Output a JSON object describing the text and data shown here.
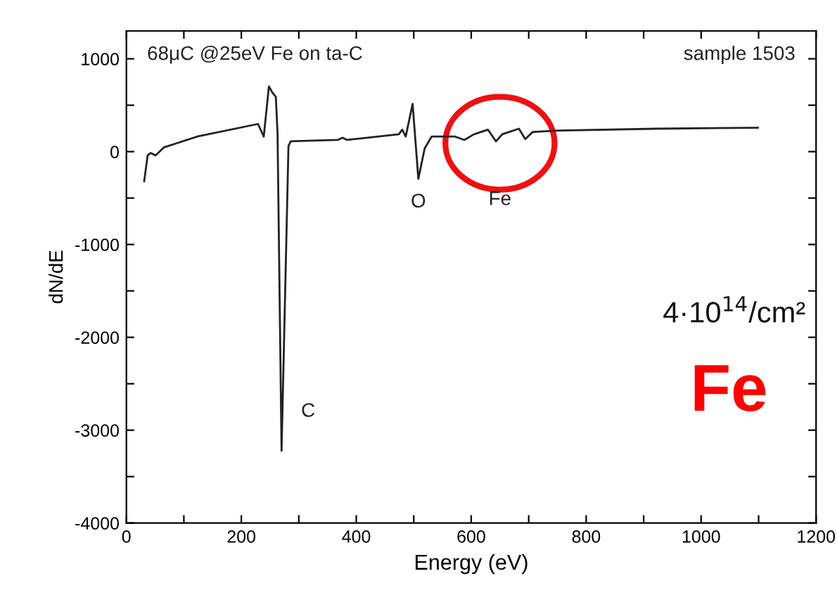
{
  "chart_data": {
    "type": "line",
    "xlabel": "Energy (eV)",
    "ylabel": "dN/dE",
    "x": [
      31,
      37,
      42,
      51,
      65,
      123,
      229,
      239,
      248,
      254,
      260,
      263,
      270,
      282,
      286,
      368,
      376,
      384,
      474,
      480,
      486,
      498,
      508,
      519,
      531,
      572,
      588,
      605,
      629,
      643,
      654,
      683,
      694,
      707,
      752,
      923,
      1099
    ],
    "series": [
      {
        "color": "#222222",
        "values": [
          -318,
          -40,
          -15,
          -40,
          45,
          162,
          298,
          162,
          702,
          636,
          590,
          200,
          -3222,
          60,
          111,
          126,
          150,
          126,
          187,
          237,
          162,
          515,
          -293,
          35,
          162,
          162,
          126,
          187,
          237,
          111,
          187,
          247,
          136,
          212,
          227,
          247,
          258
        ]
      }
    ],
    "xlim": [
      0,
      1200
    ],
    "ylim": [
      -4000,
      1300
    ],
    "xticks": [
      0,
      {
        "value": 100,
        "label": null
      },
      200,
      {
        "value": 300,
        "label": null
      },
      400,
      {
        "value": 500,
        "label": null
      },
      600,
      {
        "value": 700,
        "label": null
      },
      800,
      {
        "value": 900,
        "label": null
      },
      1000,
      {
        "value": 1100,
        "label": null
      },
      1200
    ],
    "yticks": [
      -4000,
      {
        "value": -3500,
        "label": null
      },
      -3000,
      {
        "value": -2500,
        "label": null
      },
      -2000,
      {
        "value": -1500,
        "label": null
      },
      -1000,
      {
        "value": -500,
        "label": null
      },
      0,
      {
        "value": 500,
        "label": null
      },
      1000
    ],
    "grid": false,
    "legend": false,
    "marker": "none",
    "line_style": "solid",
    "annotations": [
      "68μC @25eV Fe on ta-C",
      "sample 1503",
      {
        "text": "C",
        "x": 270,
        "y": -3222
      },
      {
        "text": "O",
        "x": 508,
        "y": -293
      },
      {
        "text": "Fe",
        "x": 650,
        "y": 111
      },
      "4·10$^{14}$/cm²",
      "Fe"
    ]
  }
}
